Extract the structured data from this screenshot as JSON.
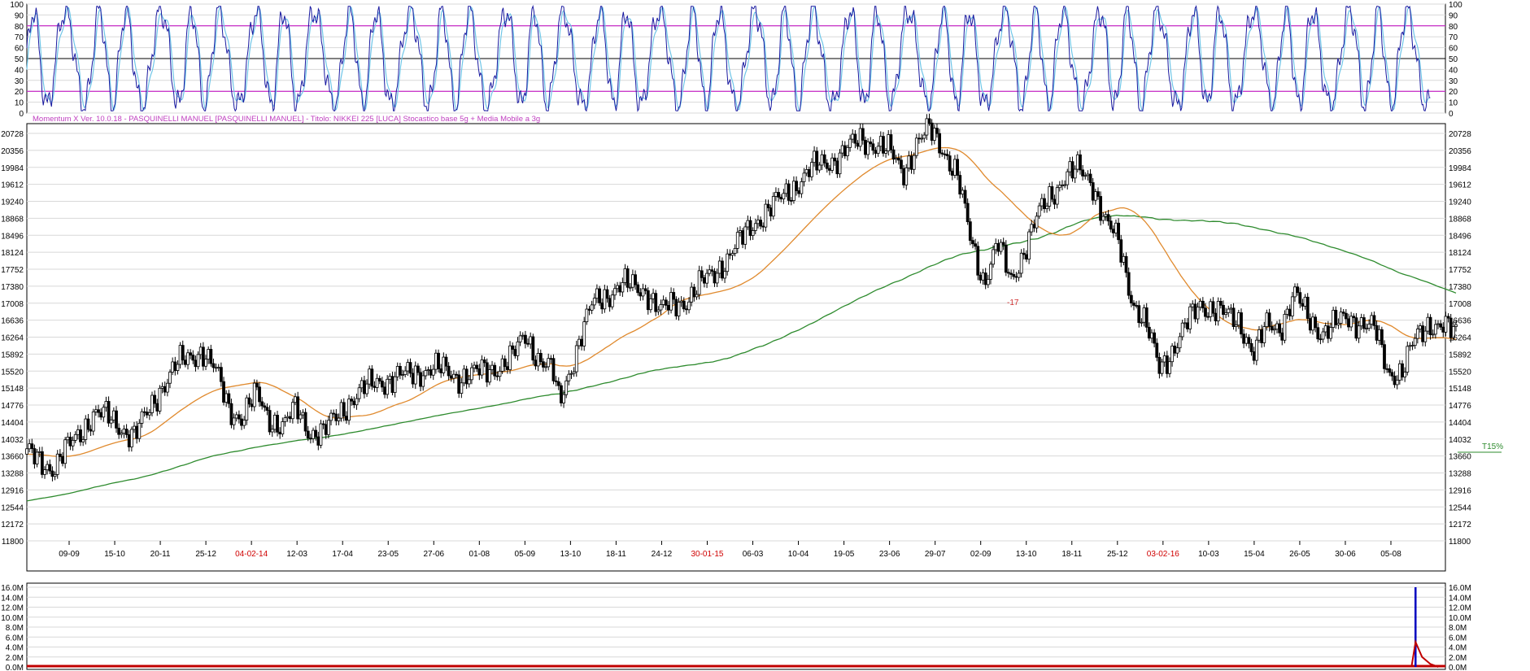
{
  "header_text": "Momentum X  Ver. 10.0.18  -  PASQUINELLI MANUEL  [PASQUINELLI MANUEL] - Titolo: NIKKEI 225  [LUCA]    Stocastico base 5g + Media Mobile a 3g",
  "colors": {
    "candle": "#000000",
    "ma_short": "#e08a2e",
    "ma_long": "#2e8b2e",
    "stoch_main": "#1a1aa0",
    "stoch_signal": "#6fc6e8",
    "stoch_band": "#c000c0",
    "volume_spike": "#0000c0",
    "volume_base": "#c00000",
    "date_highlight": "#d00000",
    "annotation": "#d03030",
    "target_text": "#2e8b2e"
  },
  "stochastic": {
    "ticks": [
      "100",
      "90",
      "80",
      "70",
      "60",
      "50",
      "40",
      "30",
      "20",
      "10",
      "0"
    ],
    "bands": [
      80,
      50,
      20
    ]
  },
  "price_axis_ticks": [
    "20728",
    "20356",
    "19984",
    "19612",
    "19240",
    "18868",
    "18496",
    "18124",
    "17752",
    "17380",
    "17008",
    "16636",
    "16264",
    "15892",
    "15520",
    "15148",
    "14776",
    "14404",
    "14032",
    "13660",
    "13288",
    "12916",
    "12544",
    "12172",
    "11800"
  ],
  "volume_axis_ticks": [
    "16.0M",
    "14.0M",
    "12.0M",
    "10.0M",
    "8.0M",
    "6.0M",
    "4.0M",
    "2.0M",
    "0.0M"
  ],
  "annotations": {
    "marker_label": "-17",
    "target_label": "T15%"
  },
  "chart_data": {
    "type": "candlestick",
    "title": "NIKKEI 225",
    "subtitle": "Stocastico base 5g + Media Mobile a 3g",
    "ylim": [
      11800,
      20728
    ],
    "x_labels": [
      {
        "text": "09-09",
        "highlight": false
      },
      {
        "text": "15-10",
        "highlight": false
      },
      {
        "text": "20-11",
        "highlight": false
      },
      {
        "text": "25-12",
        "highlight": false
      },
      {
        "text": "04-02-14",
        "highlight": true
      },
      {
        "text": "12-03",
        "highlight": false
      },
      {
        "text": "17-04",
        "highlight": false
      },
      {
        "text": "23-05",
        "highlight": false
      },
      {
        "text": "27-06",
        "highlight": false
      },
      {
        "text": "01-08",
        "highlight": false
      },
      {
        "text": "05-09",
        "highlight": false
      },
      {
        "text": "13-10",
        "highlight": false
      },
      {
        "text": "18-11",
        "highlight": false
      },
      {
        "text": "24-12",
        "highlight": false
      },
      {
        "text": "30-01-15",
        "highlight": true
      },
      {
        "text": "06-03",
        "highlight": false
      },
      {
        "text": "10-04",
        "highlight": false
      },
      {
        "text": "19-05",
        "highlight": false
      },
      {
        "text": "23-06",
        "highlight": false
      },
      {
        "text": "29-07",
        "highlight": false
      },
      {
        "text": "02-09",
        "highlight": false
      },
      {
        "text": "13-10",
        "highlight": false
      },
      {
        "text": "18-11",
        "highlight": false
      },
      {
        "text": "25-12",
        "highlight": false
      },
      {
        "text": "03-02-16",
        "highlight": true
      },
      {
        "text": "10-03",
        "highlight": false
      },
      {
        "text": "15-04",
        "highlight": false
      },
      {
        "text": "26-05",
        "highlight": false
      },
      {
        "text": "30-06",
        "highlight": false
      },
      {
        "text": "05-08",
        "highlight": false
      }
    ],
    "close_path": [
      [
        0,
        13700
      ],
      [
        2,
        13400
      ],
      [
        3,
        13800
      ],
      [
        5,
        14600
      ],
      [
        6,
        14500
      ],
      [
        8,
        14100
      ],
      [
        9,
        14600
      ],
      [
        10,
        15200
      ],
      [
        11,
        15600
      ],
      [
        12,
        15800
      ],
      [
        13,
        16000
      ],
      [
        14,
        15500
      ],
      [
        15,
        14700
      ],
      [
        16,
        14500
      ],
      [
        17,
        15000
      ],
      [
        18,
        14500
      ],
      [
        19,
        14300
      ],
      [
        20,
        14700
      ],
      [
        21,
        14200
      ],
      [
        22,
        14150
      ],
      [
        24,
        14900
      ],
      [
        26,
        15300
      ],
      [
        28,
        15400
      ],
      [
        30,
        15600
      ],
      [
        32,
        15400
      ],
      [
        34,
        15500
      ],
      [
        36,
        15800
      ],
      [
        37,
        16300
      ],
      [
        38,
        15800
      ],
      [
        39,
        15500
      ],
      [
        39.5,
        14800
      ],
      [
        40,
        15300
      ],
      [
        41,
        16200
      ],
      [
        42,
        17000
      ],
      [
        44,
        17400
      ],
      [
        46,
        17300
      ],
      [
        47,
        16800
      ],
      [
        48,
        17000
      ],
      [
        49,
        17100
      ],
      [
        50,
        17400
      ],
      [
        52,
        18000
      ],
      [
        54,
        18800
      ],
      [
        56,
        19300
      ],
      [
        58,
        19900
      ],
      [
        60,
        20200
      ],
      [
        62,
        20600
      ],
      [
        63,
        20500
      ],
      [
        64,
        20300
      ],
      [
        65,
        19900
      ],
      [
        66,
        20500
      ],
      [
        67,
        20800
      ],
      [
        68,
        20400
      ],
      [
        69,
        19800
      ],
      [
        70,
        18400
      ],
      [
        71,
        17500
      ],
      [
        72,
        18300
      ],
      [
        73,
        17500
      ],
      [
        74,
        18200
      ],
      [
        75,
        18900
      ],
      [
        76,
        19400
      ],
      [
        77,
        19800
      ],
      [
        78,
        19900
      ],
      [
        79,
        19700
      ],
      [
        80,
        18800
      ],
      [
        81,
        18300
      ],
      [
        82,
        17100
      ],
      [
        83,
        16500
      ],
      [
        84,
        15600
      ],
      [
        85,
        16000
      ],
      [
        86,
        16500
      ],
      [
        87,
        17000
      ],
      [
        88,
        16900
      ],
      [
        89,
        16700
      ],
      [
        90,
        16600
      ],
      [
        91,
        15900
      ],
      [
        92,
        16500
      ],
      [
        93,
        16500
      ],
      [
        94,
        17200
      ],
      [
        95,
        16700
      ],
      [
        96,
        16400
      ],
      [
        97,
        16500
      ],
      [
        98,
        16700
      ],
      [
        99,
        16600
      ],
      [
        100,
        16400
      ],
      [
        101,
        15500
      ],
      [
        102,
        15500
      ],
      [
        103,
        16200
      ],
      [
        104,
        16600
      ],
      [
        105,
        16500
      ],
      [
        106,
        16300
      ]
    ],
    "stochastic_cycles": 46,
    "volume_spike": {
      "x": 103,
      "value": 16000000,
      "signal_peak": 5000000
    }
  }
}
